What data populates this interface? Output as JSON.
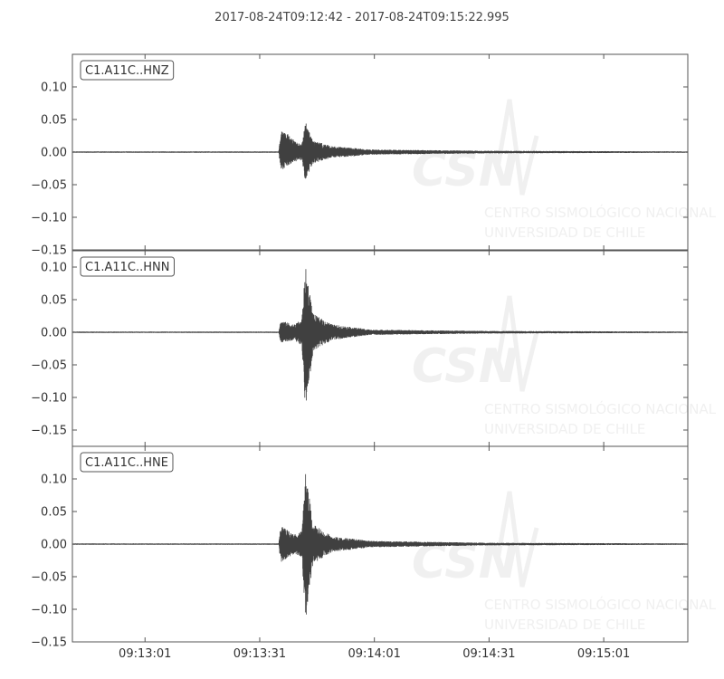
{
  "chart_data": {
    "type": "line",
    "title": "2017-08-24T09:12:42  -  2017-08-24T09:15:22.995",
    "xlim": [
      "09:12:42",
      "09:15:22.995"
    ],
    "x_ticks": [
      "09:13:01",
      "09:13:31",
      "09:14:01",
      "09:14:31",
      "09:15:01"
    ],
    "grid": false,
    "colors": {
      "trace": "#404040",
      "axis": "#555555",
      "watermark": "#f0f0f0"
    },
    "watermark": {
      "logo": "CSN",
      "lines": [
        "CENTRO SISMOLÓGICO NACIONAL",
        "UNIVERSIDAD DE CHILE"
      ]
    },
    "panels": [
      {
        "label": "C1.A11C..HNZ",
        "ylim": [
          -0.15,
          0.15
        ],
        "y_ticks": [
          "0.10",
          "0.05",
          "0.00",
          "−0.05",
          "−0.10",
          "−0.15"
        ],
        "y_tick_values": [
          0.1,
          0.05,
          0.0,
          -0.05,
          -0.1,
          -0.15
        ],
        "envelope_times": [
          "09:12:42",
          "09:13:36",
          "09:13:36.5",
          "09:13:40",
          "09:13:42",
          "09:13:43",
          "09:13:45",
          "09:13:50",
          "09:14:00",
          "09:14:30",
          "09:15:22.995"
        ],
        "envelope_max": [
          0.001,
          0.001,
          0.038,
          0.018,
          0.012,
          0.047,
          0.018,
          0.009,
          0.004,
          0.002,
          0.001
        ],
        "envelope_min": [
          -0.001,
          -0.001,
          -0.03,
          -0.015,
          -0.012,
          -0.047,
          -0.018,
          -0.009,
          -0.004,
          -0.002,
          -0.001
        ]
      },
      {
        "label": "C1.A11C..HNN",
        "ylim": [
          -0.175,
          0.125
        ],
        "y_ticks": [
          "0.10",
          "0.05",
          "0.00",
          "−0.05",
          "−0.10",
          "−0.15"
        ],
        "y_tick_values": [
          0.1,
          0.05,
          0.0,
          -0.05,
          -0.1,
          -0.15
        ],
        "envelope_times": [
          "09:12:42",
          "09:13:36",
          "09:13:36.5",
          "09:13:40",
          "09:13:42",
          "09:13:43",
          "09:13:45",
          "09:13:50",
          "09:14:00",
          "09:14:30",
          "09:15:22.995"
        ],
        "envelope_max": [
          0.001,
          0.001,
          0.018,
          0.012,
          0.02,
          0.1,
          0.028,
          0.012,
          0.004,
          0.002,
          0.001
        ],
        "envelope_min": [
          -0.001,
          -0.001,
          -0.016,
          -0.012,
          -0.02,
          -0.122,
          -0.028,
          -0.012,
          -0.004,
          -0.002,
          -0.001
        ]
      },
      {
        "label": "C1.A11C..HNE",
        "ylim": [
          -0.15,
          0.15
        ],
        "y_ticks": [
          "0.10",
          "0.05",
          "0.00",
          "−0.05",
          "−0.10",
          "−0.15"
        ],
        "y_tick_values": [
          0.1,
          0.05,
          0.0,
          -0.05,
          -0.1,
          -0.15
        ],
        "envelope_times": [
          "09:12:42",
          "09:13:36",
          "09:13:36.5",
          "09:13:40",
          "09:13:42",
          "09:13:43",
          "09:13:45",
          "09:13:50",
          "09:14:00",
          "09:14:30",
          "09:15:22.995"
        ],
        "envelope_max": [
          0.001,
          0.001,
          0.028,
          0.015,
          0.02,
          0.11,
          0.03,
          0.012,
          0.005,
          0.002,
          0.001
        ],
        "envelope_min": [
          -0.001,
          -0.001,
          -0.03,
          -0.015,
          -0.02,
          -0.117,
          -0.03,
          -0.012,
          -0.005,
          -0.002,
          -0.001
        ]
      }
    ]
  }
}
